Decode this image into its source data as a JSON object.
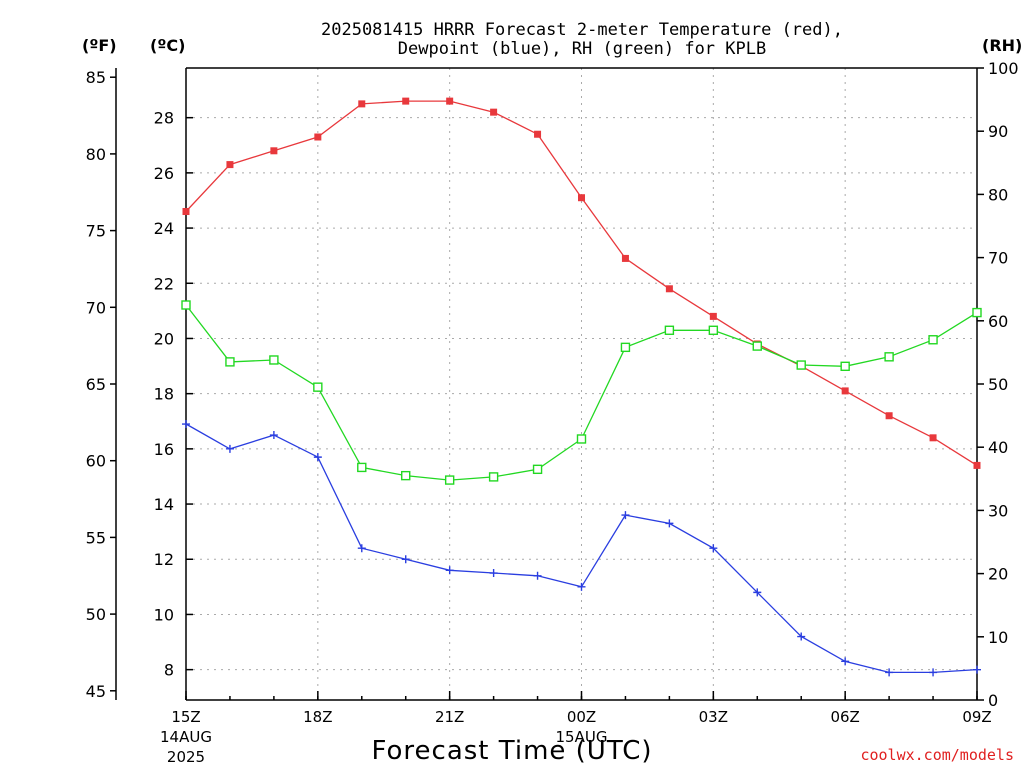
{
  "chart_data": {
    "type": "line",
    "title_line1": "2025081415 HRRR Forecast 2-meter Temperature (red),",
    "title_line2": "Dewpoint (blue), RH (green) for KPLB",
    "xlabel": "Forecast Time (UTC)",
    "credit": "coolwx.com/models",
    "units": {
      "fahrenheit": "(ºF)",
      "celsius": "(ºC)",
      "rh": "(RH)"
    },
    "x_hours": [
      0,
      1,
      2,
      3,
      4,
      5,
      6,
      7,
      8,
      9,
      10,
      11,
      12,
      13,
      14,
      15,
      16,
      17,
      18
    ],
    "x_ticks": [
      {
        "hour": 0,
        "label": "15Z",
        "date": "14AUG",
        "year": "2025"
      },
      {
        "hour": 3,
        "label": "18Z"
      },
      {
        "hour": 6,
        "label": "21Z"
      },
      {
        "hour": 9,
        "label": "00Z",
        "date": "15AUG"
      },
      {
        "hour": 12,
        "label": "03Z"
      },
      {
        "hour": 15,
        "label": "06Z"
      },
      {
        "hour": 18,
        "label": "09Z"
      }
    ],
    "y_celsius": {
      "min": 6.9,
      "max": 29.8,
      "ticks": [
        8,
        10,
        12,
        14,
        16,
        18,
        20,
        22,
        24,
        26,
        28
      ]
    },
    "y_fahrenheit": {
      "min": 44.4,
      "max": 85.6,
      "ticks": [
        45,
        50,
        55,
        60,
        65,
        70,
        75,
        80,
        85
      ]
    },
    "y_rh": {
      "min": 0,
      "max": 100,
      "ticks": [
        0,
        10,
        20,
        30,
        40,
        50,
        60,
        70,
        80,
        90,
        100
      ]
    },
    "grid": true,
    "series": [
      {
        "name": "Temperature",
        "axis": "celsius",
        "color": "#e8383c",
        "marker": "filled-square",
        "values": [
          24.6,
          26.3,
          26.8,
          27.3,
          28.5,
          28.6,
          28.6,
          28.2,
          27.4,
          25.1,
          22.9,
          21.8,
          20.8,
          19.8,
          19.0,
          18.1,
          17.2,
          16.4,
          15.4
        ]
      },
      {
        "name": "Dewpoint",
        "axis": "celsius",
        "color": "#2a3ee0",
        "marker": "plus",
        "values": [
          16.9,
          16.0,
          16.5,
          15.7,
          12.4,
          12.0,
          11.6,
          11.5,
          11.4,
          11.0,
          13.6,
          13.3,
          12.4,
          10.8,
          9.2,
          8.3,
          7.9,
          7.9,
          8.0
        ]
      },
      {
        "name": "RH",
        "axis": "rh",
        "color": "#22d822",
        "marker": "open-square",
        "values": [
          62.5,
          53.5,
          53.8,
          49.5,
          36.8,
          35.5,
          34.8,
          35.3,
          36.5,
          41.3,
          55.8,
          58.5,
          58.5,
          56.0,
          53.0,
          52.8,
          54.3,
          57.0,
          61.3
        ]
      }
    ]
  }
}
